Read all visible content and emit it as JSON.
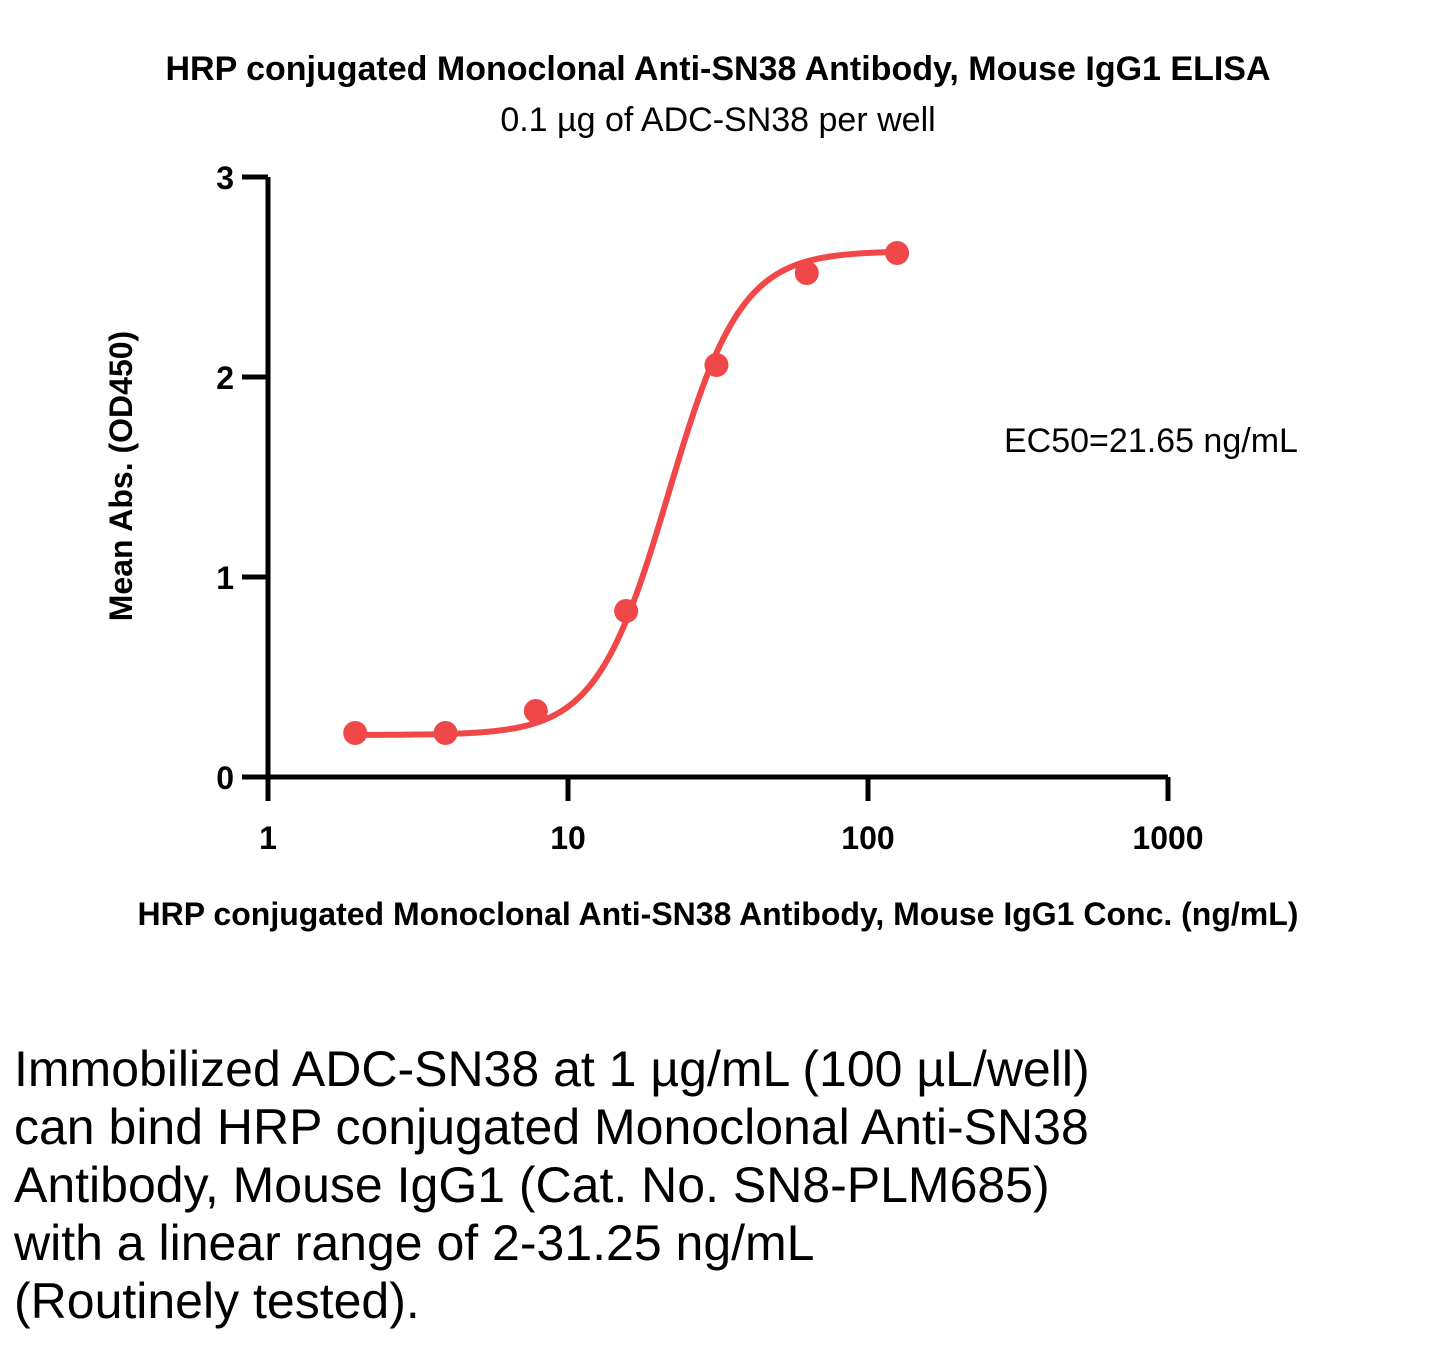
{
  "chart_data": {
    "type": "scatter",
    "title": "HRP conjugated Monoclonal Anti-SN38 Antibody, Mouse IgG1 ELISA",
    "subtitle": "0.1 µg of ADC-SN38 per well",
    "xlabel": "HRP conjugated Monoclonal Anti-SN38 Antibody, Mouse IgG1 Conc. (ng/mL)",
    "ylabel": "Mean Abs. (OD450)",
    "xscale": "log",
    "xlim": [
      1,
      1000
    ],
    "ylim": [
      0,
      3
    ],
    "x_ticks": [
      "1",
      "10",
      "100",
      "1000"
    ],
    "y_ticks": [
      "0",
      "1",
      "2",
      "3"
    ],
    "grid": false,
    "legend": "none",
    "series_color": "#f04848",
    "series": [
      {
        "x": [
          1.953,
          3.906,
          7.813,
          15.625,
          31.25,
          62.5,
          125
        ],
        "y": [
          0.22,
          0.22,
          0.33,
          0.83,
          2.06,
          2.52,
          2.62
        ],
        "fit": {
          "model": "4PL",
          "bottom": 0.21,
          "top": 2.63,
          "ec50": 21.65,
          "hill": 3.6
        }
      }
    ],
    "annotation": "EC50=21.65 ng/mL"
  },
  "caption": "Immobilized ADC-SN38  at 1 µg/mL (100 µL/well)\ncan bind HRP conjugated Monoclonal Anti-SN38\nAntibody, Mouse IgG1 (Cat. No. SN8-PLM685)\nwith a linear range of 2-31.25 ng/mL\n(Routinely tested)."
}
